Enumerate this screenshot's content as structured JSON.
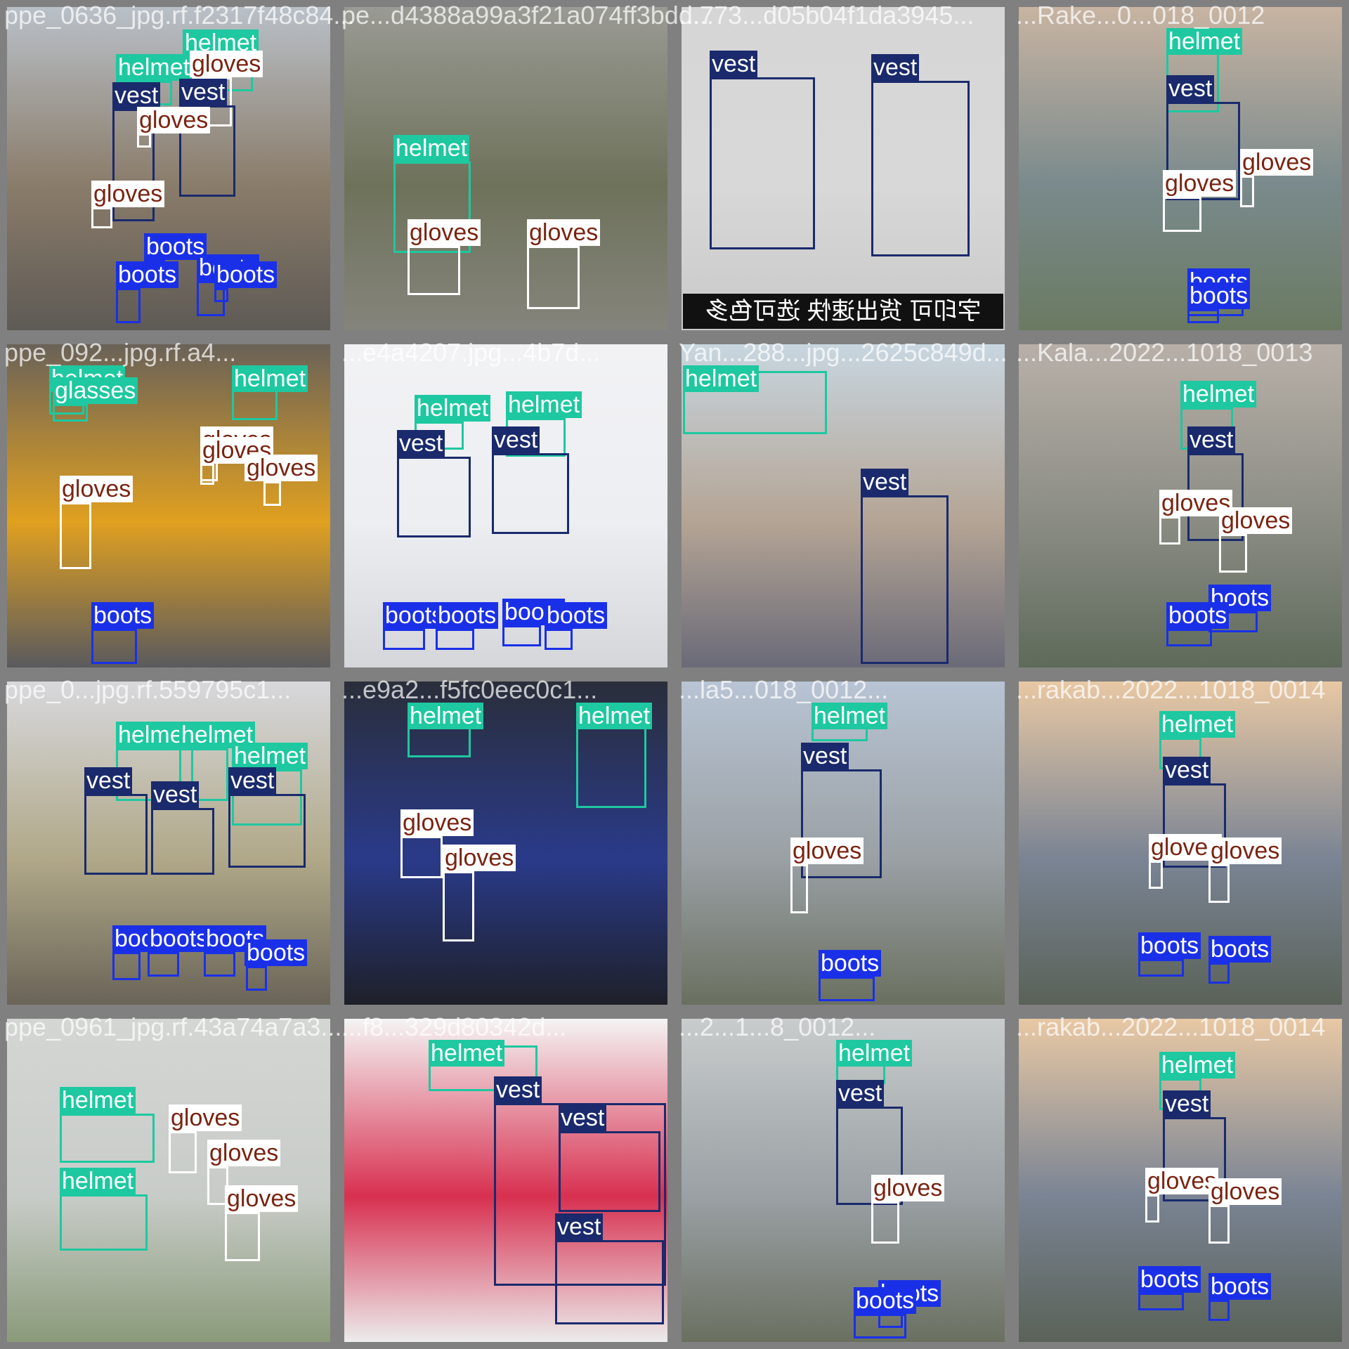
{
  "classes": {
    "helmet": {
      "box": "#1ec8a0",
      "bg": "#1ec8a0",
      "fg": "#ffffff"
    },
    "vest": {
      "box": "#1a2a6c",
      "bg": "#1a2a6c",
      "fg": "#ffffff"
    },
    "gloves": {
      "box": "#ffffff",
      "bg": "#ffffff",
      "fg": "#7a2412"
    },
    "boots": {
      "box": "#1a30e8",
      "bg": "#1a30e8",
      "fg": "#ffffff"
    },
    "glasses": {
      "box": "#1ec8a0",
      "bg": "#1ec8a0",
      "fg": "#ffffff"
    }
  },
  "tiles": [
    {
      "filename": "ppe_0636_jpg.rf.f2317f48c84...",
      "photo": [
        "#b9c0c8",
        "#8a7c6a",
        "#5e5a55"
      ],
      "labels": [
        "helmet",
        "helmet",
        "vest",
        "gloves",
        "vest",
        "gloves",
        "gloves",
        "boots",
        "boots",
        "boots",
        "boots"
      ]
    },
    {
      "filename": "pe...d4388a99a3f21a074ff3bdd...",
      "photo": [
        "#9a9a94",
        "#6e725a",
        "#85847c"
      ],
      "labels": [
        "helmet",
        "gloves",
        "gloves"
      ]
    },
    {
      "filename": "...773...d05b04f1da3945...",
      "photo": [
        "#d6d6d6",
        "#d8d8d8",
        "#c9c9c9"
      ],
      "labels": [
        "vest",
        "vest"
      ],
      "overlay_text": "字印可 货出速快 选可色多"
    },
    {
      "filename": "...Rake...0...018_0012",
      "photo": [
        "#c8b4a2",
        "#7a8a8c",
        "#6a7a62"
      ],
      "labels": [
        "helmet",
        "vest",
        "gloves",
        "gloves",
        "boots",
        "boots"
      ]
    },
    {
      "filename": "ppe_092...jpg.rf.a4...",
      "photo": [
        "#6a6258",
        "#e0a020",
        "#5a5a5e"
      ],
      "labels": [
        "helmet",
        "helmet",
        "glasses",
        "gloves",
        "gloves",
        "gloves",
        "gloves",
        "boots"
      ]
    },
    {
      "filename": "...e4a4207.jpg...4b7d...",
      "photo": [
        "#f2f2f4",
        "#eceef2",
        "#d4d6da"
      ],
      "labels": [
        "helmet",
        "helmet",
        "vest",
        "vest",
        "boots",
        "boots",
        "boots",
        "boots"
      ]
    },
    {
      "filename": "Yan...288...jpg...2625c849d...",
      "photo": [
        "#c8d6e0",
        "#b4a494",
        "#6a6a78"
      ],
      "labels": [
        "helmet",
        "vest"
      ]
    },
    {
      "filename": "...Kala...2022...1018_0013",
      "photo": [
        "#b8b0a8",
        "#8a8c84",
        "#5e6a5a"
      ],
      "labels": [
        "helmet",
        "vest",
        "gloves",
        "gloves",
        "boots",
        "boots"
      ]
    },
    {
      "filename": "ppe_0...jpg.rf.559795c1...",
      "photo": [
        "#d8d8dc",
        "#b0a888",
        "#6a6458"
      ],
      "labels": [
        "helmet",
        "helmet",
        "helmet",
        "vest",
        "vest",
        "vest",
        "boots",
        "boots",
        "boots",
        "boots"
      ]
    },
    {
      "filename": "...e9a2...f5fc0eec0c1...",
      "photo": [
        "#2a2e3a",
        "#2a3a8a",
        "#1e2028"
      ],
      "labels": [
        "helmet",
        "helmet",
        "gloves",
        "gloves"
      ]
    },
    {
      "filename": "...la5...018_0012...",
      "photo": [
        "#b8c4d4",
        "#9aa0a4",
        "#6a7060"
      ],
      "labels": [
        "helmet",
        "vest",
        "gloves",
        "boots"
      ]
    },
    {
      "filename": "...rakab...2022...1018_0014",
      "photo": [
        "#e8c8a4",
        "#7a8494",
        "#5a6258"
      ],
      "labels": [
        "helmet",
        "vest",
        "gloves",
        "gloves",
        "boots",
        "boots"
      ]
    },
    {
      "filename": "ppe_0961_jpg.rf.43a74a7a3...",
      "photo": [
        "#d4d6d4",
        "#c8ccc8",
        "#8a9a7a"
      ],
      "labels": [
        "helmet",
        "helmet",
        "gloves",
        "gloves",
        "gloves"
      ]
    },
    {
      "filename": "...f8...329d80342d...",
      "photo": [
        "#f4f4f4",
        "#d83050",
        "#ececec"
      ],
      "labels": [
        "helmet",
        "vest",
        "vest",
        "vest"
      ]
    },
    {
      "filename": "...2...1...8_0012...",
      "photo": [
        "#c8cccc",
        "#9aa0a4",
        "#6a7060"
      ],
      "labels": [
        "helmet",
        "vest",
        "gloves",
        "boots",
        "boots"
      ]
    },
    {
      "filename": "...rakab...2022...1018_0014",
      "photo": [
        "#e8c8a4",
        "#7a8494",
        "#5a6258"
      ],
      "labels": [
        "helmet",
        "vest",
        "gloves",
        "gloves",
        "boots",
        "boots"
      ]
    }
  ]
}
